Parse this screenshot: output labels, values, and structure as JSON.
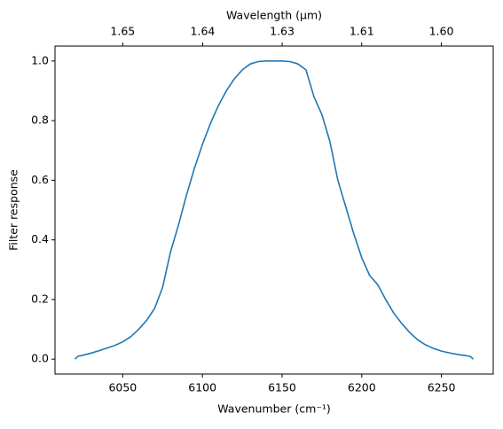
{
  "chart_data": {
    "type": "line",
    "xlabel": "Wavenumber (cm⁻¹)",
    "ylabel": "Filter response",
    "x2label": "Wavelength (μm)",
    "x": [
      6020,
      6022,
      6025,
      6030,
      6035,
      6040,
      6045,
      6050,
      6055,
      6060,
      6065,
      6070,
      6075,
      6080,
      6085,
      6090,
      6095,
      6100,
      6105,
      6110,
      6115,
      6120,
      6125,
      6130,
      6135,
      6140,
      6145,
      6150,
      6155,
      6160,
      6165,
      6170,
      6175,
      6180,
      6185,
      6190,
      6195,
      6200,
      6205,
      6210,
      6215,
      6220,
      6225,
      6230,
      6235,
      6240,
      6245,
      6250,
      6255,
      6260,
      6265,
      6268,
      6270
    ],
    "series": [
      {
        "color": "#1f77b4",
        "values": [
          0.0,
          0.01,
          0.013,
          0.02,
          0.028,
          0.037,
          0.046,
          0.058,
          0.075,
          0.1,
          0.13,
          0.17,
          0.24,
          0.36,
          0.45,
          0.55,
          0.64,
          0.72,
          0.79,
          0.85,
          0.9,
          0.94,
          0.97,
          0.99,
          0.998,
          1.0,
          1.0,
          1.0,
          0.998,
          0.99,
          0.97,
          0.88,
          0.82,
          0.73,
          0.6,
          0.51,
          0.42,
          0.34,
          0.28,
          0.25,
          0.2,
          0.155,
          0.12,
          0.09,
          0.065,
          0.048,
          0.036,
          0.027,
          0.021,
          0.016,
          0.012,
          0.009,
          0.0
        ]
      }
    ],
    "xlim": [
      6007.5,
      6282.5
    ],
    "xticks": [
      6050,
      6100,
      6150,
      6200,
      6250
    ],
    "ylim": [
      -0.05,
      1.05
    ],
    "yticks": [
      {
        "value": 0,
        "label": "0.0"
      },
      0.2,
      0.4,
      0.6,
      0.8,
      {
        "value": 1,
        "label": "1.0"
      }
    ],
    "x2scale": "reciprocal",
    "x2lim": [
      1.6646,
      1.5917
    ],
    "x2ticks": [
      {
        "value": 1.6529,
        "label": "1.65"
      },
      {
        "value": 1.6393,
        "label": "1.64"
      },
      {
        "value": 1.626,
        "label": "1.63"
      },
      {
        "value": 1.6129,
        "label": "1.61"
      },
      {
        "value": 1.6,
        "label": "1.60"
      }
    ],
    "grid": false
  }
}
